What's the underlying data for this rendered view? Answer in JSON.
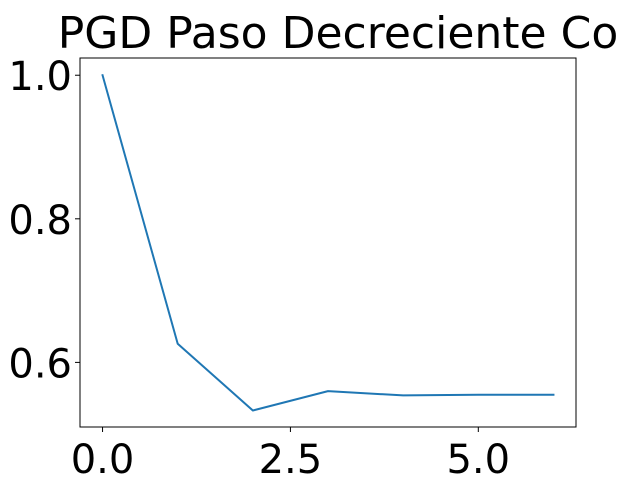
{
  "chart_data": {
    "type": "line",
    "title": "PGD Paso Decreciente Co",
    "xlabel": "",
    "ylabel": "",
    "x_ticks": [
      "0.0",
      "2.5",
      "5.0"
    ],
    "x_tick_values": [
      0,
      2.5,
      5
    ],
    "y_ticks": [
      "0.6",
      "0.8",
      "1.0"
    ],
    "y_tick_values": [
      0.6,
      0.8,
      1.0
    ],
    "xlim": [
      -0.3,
      6.3
    ],
    "ylim": [
      0.51,
      1.024
    ],
    "grid": false,
    "series": [
      {
        "color": "#1f77b4",
        "x": [
          0,
          1,
          2,
          3,
          4,
          5,
          6
        ],
        "values": [
          1.0,
          0.626,
          0.533,
          0.56,
          0.554,
          0.555,
          0.555
        ]
      }
    ]
  }
}
